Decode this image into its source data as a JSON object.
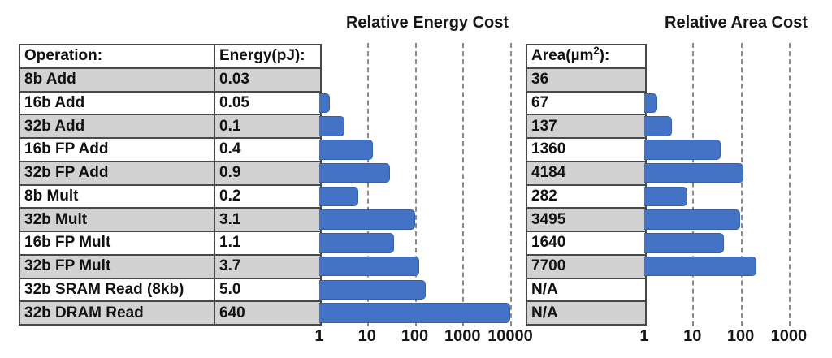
{
  "table": {
    "operation_header": "Operation:",
    "energy_header": "Energy(pJ):",
    "area_header": "Area(µm²):",
    "rows": [
      {
        "operation": "8b Add",
        "energy": "0.03",
        "area": "36"
      },
      {
        "operation": "16b Add",
        "energy": "0.05",
        "area": "67"
      },
      {
        "operation": "32b Add",
        "energy": "0.1",
        "area": "137"
      },
      {
        "operation": "16b FP Add",
        "energy": "0.4",
        "area": "1360"
      },
      {
        "operation": "32b FP Add",
        "energy": "0.9",
        "area": "4184"
      },
      {
        "operation": "8b Mult",
        "energy": "0.2",
        "area": "282"
      },
      {
        "operation": "32b Mult",
        "energy": "3.1",
        "area": "3495"
      },
      {
        "operation": "16b FP Mult",
        "energy": "1.1",
        "area": "1640"
      },
      {
        "operation": "32b FP Mult",
        "energy": "3.7",
        "area": "7700"
      },
      {
        "operation": "32b SRAM Read (8kb)",
        "energy": "5.0",
        "area": "N/A"
      },
      {
        "operation": "32b DRAM Read",
        "energy": "640",
        "area": "N/A"
      }
    ]
  },
  "chart_data": [
    {
      "type": "bar",
      "orientation": "horizontal",
      "title": "Relative Energy Cost",
      "x_scale": "log10",
      "xlim": [
        1,
        10000
      ],
      "x_ticks": [
        1,
        10,
        100,
        1000,
        10000
      ],
      "gridlines": "vertical-dashed",
      "bar_color": "#4472C4",
      "categories": [
        "8b Add",
        "16b Add",
        "32b Add",
        "16b FP Add",
        "32b FP Add",
        "8b Mult",
        "32b Mult",
        "16b FP Mult",
        "32b FP Mult",
        "32b SRAM Read (8kb)",
        "32b DRAM Read"
      ],
      "values_pJ": [
        0.03,
        0.05,
        0.1,
        0.4,
        0.9,
        0.2,
        3.1,
        1.1,
        3.7,
        5.0,
        640
      ],
      "relative_values": [
        1,
        1.67,
        3.33,
        13.33,
        30,
        6.67,
        103.3,
        36.7,
        123.3,
        166.7,
        21333
      ],
      "note": "values clipped at axis max 10000"
    },
    {
      "type": "bar",
      "orientation": "horizontal",
      "title": "Relative Area Cost",
      "x_scale": "log10",
      "xlim": [
        1,
        1000
      ],
      "x_ticks": [
        1,
        10,
        100,
        1000
      ],
      "gridlines": "vertical-dashed",
      "bar_color": "#4472C4",
      "categories": [
        "8b Add",
        "16b Add",
        "32b Add",
        "16b FP Add",
        "32b FP Add",
        "8b Mult",
        "32b Mult",
        "16b FP Mult",
        "32b FP Mult",
        "32b SRAM Read (8kb)",
        "32b DRAM Read"
      ],
      "values_um2": [
        36,
        67,
        137,
        1360,
        4184,
        282,
        3495,
        1640,
        7700,
        null,
        null
      ],
      "relative_values": [
        1,
        1.86,
        3.81,
        37.78,
        116.22,
        7.83,
        97.08,
        45.56,
        213.89,
        null,
        null
      ]
    }
  ],
  "colors": {
    "bar": "#4472C4",
    "bar_border": "#3560a8",
    "row_shade": "#d2d2d2",
    "table_border": "#484848",
    "gridline": "#777777"
  }
}
